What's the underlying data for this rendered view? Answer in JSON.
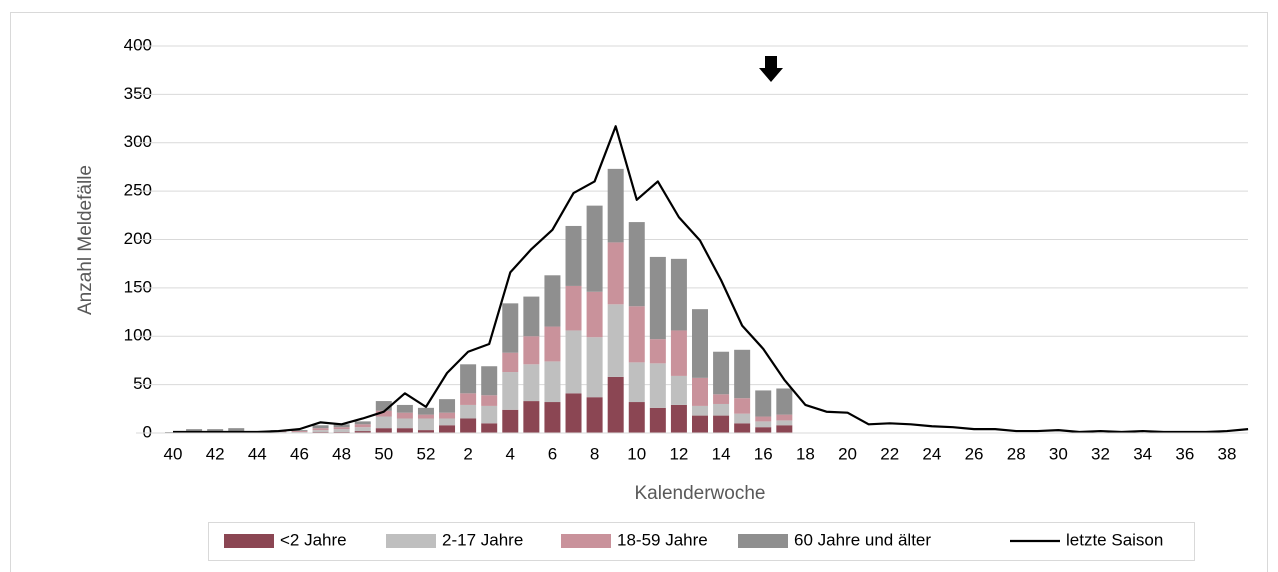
{
  "chart_data": {
    "type": "bar+line",
    "x_label": "Kalenderwoche",
    "y_label": "Anzahl Meldefälle",
    "categories": [
      "40",
      null,
      "42",
      null,
      "44",
      null,
      "46",
      null,
      "48",
      null,
      "50",
      null,
      "52",
      null,
      "2",
      null,
      "4",
      null,
      "6",
      null,
      "8",
      null,
      "10",
      null,
      "12",
      null,
      "14",
      null,
      "16",
      null,
      "18",
      null,
      "20",
      null,
      "22",
      null,
      "24",
      null,
      "26",
      null,
      "28",
      null,
      "30",
      null,
      "32",
      null,
      "34",
      null,
      "36",
      null,
      "38",
      null
    ],
    "ylim": [
      0,
      400
    ],
    "yticks": [
      0,
      50,
      100,
      150,
      200,
      250,
      300,
      350,
      400
    ],
    "grid": true,
    "stacked": true,
    "series": [
      {
        "name": "<2 Jahre",
        "type": "bar",
        "color": "#8b4653",
        "values": [
          0,
          0,
          0,
          0,
          0,
          0,
          0,
          1,
          1,
          2,
          5,
          5,
          3,
          8,
          15,
          10,
          24,
          33,
          32,
          41,
          37,
          58,
          32,
          26,
          29,
          18,
          18,
          10,
          6,
          8,
          null,
          null,
          null,
          null,
          null,
          null,
          null,
          null,
          null,
          null,
          null,
          null,
          null,
          null,
          null,
          null,
          null,
          null,
          null,
          null,
          null,
          null
        ]
      },
      {
        "name": "2-17 Jahre",
        "type": "bar",
        "color": "#bfbfbf",
        "values": [
          0,
          1,
          1,
          1,
          0,
          1,
          1,
          2,
          3,
          4,
          12,
          10,
          12,
          7,
          14,
          18,
          39,
          38,
          42,
          65,
          62,
          75,
          41,
          46,
          30,
          10,
          12,
          10,
          6,
          5,
          null,
          null,
          null,
          null,
          null,
          null,
          null,
          null,
          null,
          null,
          null,
          null,
          null,
          null,
          null,
          null,
          null,
          null,
          null,
          null,
          null,
          null
        ]
      },
      {
        "name": "18-59 Jahre",
        "type": "bar",
        "color": "#c9929b",
        "values": [
          0,
          1,
          1,
          1,
          1,
          1,
          1,
          2,
          2,
          3,
          6,
          6,
          4,
          6,
          12,
          11,
          20,
          29,
          36,
          46,
          47,
          64,
          58,
          25,
          47,
          29,
          10,
          16,
          5,
          6,
          null,
          null,
          null,
          null,
          null,
          null,
          null,
          null,
          null,
          null,
          null,
          null,
          null,
          null,
          null,
          null,
          null,
          null,
          null,
          null,
          null,
          null
        ]
      },
      {
        "name": "60 Jahre und älter",
        "type": "bar",
        "color": "#8f8f8f",
        "values": [
          1,
          2,
          2,
          3,
          1,
          1,
          1,
          3,
          3,
          3,
          10,
          8,
          7,
          14,
          30,
          30,
          51,
          41,
          53,
          62,
          89,
          76,
          87,
          85,
          74,
          71,
          44,
          50,
          27,
          27,
          null,
          null,
          null,
          null,
          null,
          null,
          null,
          null,
          null,
          null,
          null,
          null,
          null,
          null,
          null,
          null,
          null,
          null,
          null,
          null,
          null,
          null
        ]
      },
      {
        "name": "letzte Saison",
        "type": "line",
        "color": "#000000",
        "values": [
          1,
          1,
          1,
          1,
          1,
          2,
          4,
          11,
          9,
          15,
          22,
          41,
          27,
          62,
          84,
          92,
          166,
          190,
          210,
          248,
          260,
          317,
          241,
          260,
          223,
          199,
          158,
          111,
          87,
          55,
          29,
          22,
          21,
          9,
          10,
          9,
          7,
          6,
          4,
          4,
          2,
          2,
          3,
          1,
          2,
          1,
          2,
          1,
          1,
          1,
          2,
          4
        ]
      }
    ]
  }
}
